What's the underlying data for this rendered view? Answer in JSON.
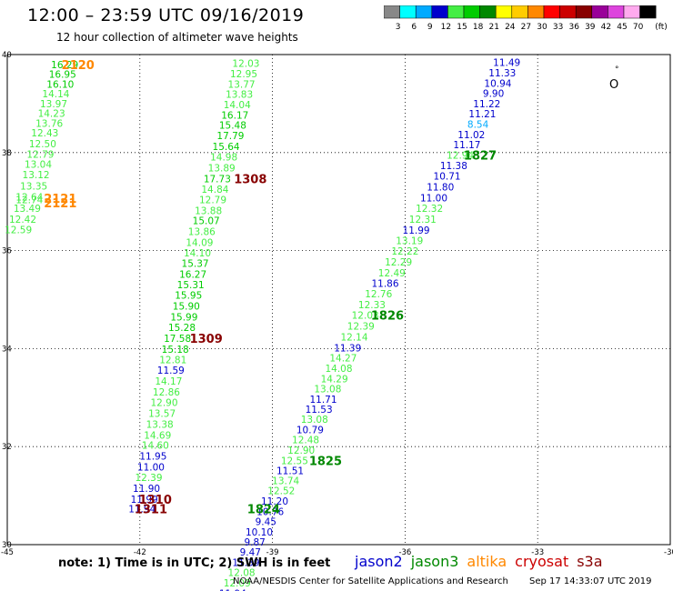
{
  "header": {
    "title": "12:00 – 23:59 UTC 09/16/2019",
    "subtitle": "12 hour collection of altimeter wave heights"
  },
  "colorbar": {
    "unit": "(ft)",
    "bins": [
      {
        "label": "3",
        "color": "#888888"
      },
      {
        "label": "6",
        "color": "#00ffff"
      },
      {
        "label": "9",
        "color": "#00aaff"
      },
      {
        "label": "12",
        "color": "#0000cc"
      },
      {
        "label": "15",
        "color": "#44ee44"
      },
      {
        "label": "18",
        "color": "#00cc00"
      },
      {
        "label": "21",
        "color": "#008800"
      },
      {
        "label": "24",
        "color": "#ffff00"
      },
      {
        "label": "27",
        "color": "#ffcc00"
      },
      {
        "label": "30",
        "color": "#ff8800"
      },
      {
        "label": "33",
        "color": "#ff0000"
      },
      {
        "label": "36",
        "color": "#cc0000"
      },
      {
        "label": "39",
        "color": "#880000"
      },
      {
        "label": "42",
        "color": "#990099"
      },
      {
        "label": "45",
        "color": "#dd44dd"
      },
      {
        "label": "70",
        "color": "#ffaaee"
      },
      {
        "label": "",
        "color": "#000000"
      }
    ]
  },
  "map": {
    "lon_range": [
      -45,
      -30
    ],
    "lat_range": [
      30,
      40
    ],
    "lon_ticks": [
      "-45",
      "-42",
      "-39",
      "-36",
      "-33",
      "-30"
    ],
    "lat_ticks": [
      "40",
      "38",
      "36",
      "34",
      "32",
      "30"
    ],
    "grid_lons": [
      -42,
      -39,
      -36,
      -33
    ],
    "grid_lats": [
      38,
      36,
      34,
      32
    ],
    "island_marks": [
      "°",
      "O"
    ]
  },
  "tracks": [
    {
      "sat": "jason3",
      "values": [
        {
          "v": "16.29",
          "c": "#00cc00",
          "lon": -43.7,
          "lat": 39.8
        },
        {
          "v": "16.95",
          "c": "#00cc00",
          "lon": -43.75,
          "lat": 39.6
        },
        {
          "v": "16.10",
          "c": "#00cc00",
          "lon": -43.8,
          "lat": 39.4
        },
        {
          "v": "14.14",
          "c": "#44ee44",
          "lon": -43.9,
          "lat": 39.2
        },
        {
          "v": "13.97",
          "c": "#44ee44",
          "lon": -43.95,
          "lat": 39.0
        },
        {
          "v": "14.23",
          "c": "#44ee44",
          "lon": -44.0,
          "lat": 38.8
        },
        {
          "v": "13.76",
          "c": "#44ee44",
          "lon": -44.05,
          "lat": 38.6
        },
        {
          "v": "12.43",
          "c": "#44ee44",
          "lon": -44.15,
          "lat": 38.4
        },
        {
          "v": "12.50",
          "c": "#44ee44",
          "lon": -44.2,
          "lat": 38.18
        },
        {
          "v": "12.79",
          "c": "#44ee44",
          "lon": -44.25,
          "lat": 37.97
        },
        {
          "v": "13.04",
          "c": "#44ee44",
          "lon": -44.3,
          "lat": 37.76
        },
        {
          "v": "13.12",
          "c": "#44ee44",
          "lon": -44.35,
          "lat": 37.55
        },
        {
          "v": "13.35",
          "c": "#44ee44",
          "lon": -44.4,
          "lat": 37.32
        },
        {
          "v": "12.64",
          "c": "#44ee44",
          "lon": -44.5,
          "lat": 37.1
        },
        {
          "v": "12.74",
          "c": "#44ee44",
          "lon": -44.5,
          "lat": 37.04
        },
        {
          "v": "13.49",
          "c": "#44ee44",
          "lon": -44.55,
          "lat": 36.86
        },
        {
          "v": "12.42",
          "c": "#44ee44",
          "lon": -44.65,
          "lat": 36.64
        },
        {
          "v": "12.59",
          "c": "#44ee44",
          "lon": -44.75,
          "lat": 36.43
        }
      ]
    },
    {
      "sat": "jason3",
      "values": [
        {
          "v": "12.03",
          "c": "#44ee44",
          "lon": -39.6,
          "lat": 39.82
        },
        {
          "v": "12.95",
          "c": "#44ee44",
          "lon": -39.65,
          "lat": 39.61
        },
        {
          "v": "13.77",
          "c": "#44ee44",
          "lon": -39.7,
          "lat": 39.4
        },
        {
          "v": "13.83",
          "c": "#44ee44",
          "lon": -39.75,
          "lat": 39.19
        },
        {
          "v": "14.04",
          "c": "#44ee44",
          "lon": -39.8,
          "lat": 38.98
        },
        {
          "v": "16.17",
          "c": "#00cc00",
          "lon": -39.85,
          "lat": 38.77
        },
        {
          "v": "15.48",
          "c": "#00cc00",
          "lon": -39.9,
          "lat": 38.56
        },
        {
          "v": "17.79",
          "c": "#00cc00",
          "lon": -39.95,
          "lat": 38.35
        },
        {
          "v": "15.64",
          "c": "#00cc00",
          "lon": -40.05,
          "lat": 38.13
        },
        {
          "v": "14.98",
          "c": "#44ee44",
          "lon": -40.1,
          "lat": 37.91
        },
        {
          "v": "13.89",
          "c": "#44ee44",
          "lon": -40.15,
          "lat": 37.69
        },
        {
          "v": "17.73",
          "c": "#00cc00",
          "lon": -40.25,
          "lat": 37.47
        },
        {
          "v": "14.84",
          "c": "#44ee44",
          "lon": -40.3,
          "lat": 37.25
        },
        {
          "v": "12.79",
          "c": "#44ee44",
          "lon": -40.35,
          "lat": 37.04
        },
        {
          "v": "13.88",
          "c": "#44ee44",
          "lon": -40.45,
          "lat": 36.82
        },
        {
          "v": "15.07",
          "c": "#00cc00",
          "lon": -40.5,
          "lat": 36.61
        },
        {
          "v": "13.86",
          "c": "#44ee44",
          "lon": -40.6,
          "lat": 36.39
        },
        {
          "v": "14.09",
          "c": "#44ee44",
          "lon": -40.65,
          "lat": 36.17
        },
        {
          "v": "14.10",
          "c": "#44ee44",
          "lon": -40.7,
          "lat": 35.96
        },
        {
          "v": "15.37",
          "c": "#00cc00",
          "lon": -40.75,
          "lat": 35.74
        },
        {
          "v": "16.27",
          "c": "#00cc00",
          "lon": -40.8,
          "lat": 35.52
        },
        {
          "v": "15.31",
          "c": "#00cc00",
          "lon": -40.85,
          "lat": 35.31
        },
        {
          "v": "15.95",
          "c": "#00cc00",
          "lon": -40.9,
          "lat": 35.09
        },
        {
          "v": "15.90",
          "c": "#00cc00",
          "lon": -40.95,
          "lat": 34.87
        },
        {
          "v": "15.99",
          "c": "#00cc00",
          "lon": -41.0,
          "lat": 34.65
        },
        {
          "v": "15.28",
          "c": "#00cc00",
          "lon": -41.05,
          "lat": 34.43
        },
        {
          "v": "17.58",
          "c": "#00cc00",
          "lon": -41.15,
          "lat": 34.21
        },
        {
          "v": "15.18",
          "c": "#00cc00",
          "lon": -41.2,
          "lat": 33.99
        },
        {
          "v": "12.81",
          "c": "#44ee44",
          "lon": -41.25,
          "lat": 33.78
        },
        {
          "v": "11.59",
          "c": "#0000cc",
          "lon": -41.3,
          "lat": 33.56
        },
        {
          "v": "14.17",
          "c": "#44ee44",
          "lon": -41.35,
          "lat": 33.34
        },
        {
          "v": "12.86",
          "c": "#44ee44",
          "lon": -41.4,
          "lat": 33.12
        },
        {
          "v": "12.90",
          "c": "#44ee44",
          "lon": -41.45,
          "lat": 32.9
        },
        {
          "v": "13.57",
          "c": "#44ee44",
          "lon": -41.5,
          "lat": 32.68
        },
        {
          "v": "13.38",
          "c": "#44ee44",
          "lon": -41.55,
          "lat": 32.46
        },
        {
          "v": "14.69",
          "c": "#44ee44",
          "lon": -41.6,
          "lat": 32.24
        },
        {
          "v": "14.60",
          "c": "#44ee44",
          "lon": -41.65,
          "lat": 32.03
        },
        {
          "v": "11.95",
          "c": "#0000cc",
          "lon": -41.7,
          "lat": 31.81
        },
        {
          "v": "11.00",
          "c": "#0000cc",
          "lon": -41.75,
          "lat": 31.59
        },
        {
          "v": "12.39",
          "c": "#44ee44",
          "lon": -41.8,
          "lat": 31.37
        },
        {
          "v": "11.90",
          "c": "#0000cc",
          "lon": -41.85,
          "lat": 31.15
        },
        {
          "v": "11.99",
          "c": "#0000cc",
          "lon": -41.9,
          "lat": 30.93
        },
        {
          "v": "11.94",
          "c": "#0000cc",
          "lon": -41.95,
          "lat": 30.73
        }
      ]
    },
    {
      "sat": "jason2-jason3",
      "values": [
        {
          "v": "11.49",
          "c": "#0000cc",
          "lon": -33.7,
          "lat": 39.84
        },
        {
          "v": "11.33",
          "c": "#0000cc",
          "lon": -33.8,
          "lat": 39.63
        },
        {
          "v": "10.94",
          "c": "#0000cc",
          "lon": -33.9,
          "lat": 39.42
        },
        {
          "v": "9.90",
          "c": "#0000cc",
          "lon": -34.0,
          "lat": 39.21
        },
        {
          "v": "11.22",
          "c": "#0000cc",
          "lon": -34.15,
          "lat": 39.0
        },
        {
          "v": "11.21",
          "c": "#0000cc",
          "lon": -34.25,
          "lat": 38.79
        },
        {
          "v": "8.54",
          "c": "#00aaff",
          "lon": -34.35,
          "lat": 38.58
        },
        {
          "v": "11.02",
          "c": "#0000cc",
          "lon": -34.5,
          "lat": 38.37
        },
        {
          "v": "11.17",
          "c": "#0000cc",
          "lon": -34.6,
          "lat": 38.16
        },
        {
          "v": "12.94",
          "c": "#44ee44",
          "lon": -34.75,
          "lat": 37.95
        },
        {
          "v": "11.38",
          "c": "#0000cc",
          "lon": -34.9,
          "lat": 37.74
        },
        {
          "v": "10.71",
          "c": "#0000cc",
          "lon": -35.05,
          "lat": 37.52
        },
        {
          "v": "11.80",
          "c": "#0000cc",
          "lon": -35.2,
          "lat": 37.3
        },
        {
          "v": "11.00",
          "c": "#0000cc",
          "lon": -35.35,
          "lat": 37.08
        },
        {
          "v": "12.32",
          "c": "#44ee44",
          "lon": -35.45,
          "lat": 36.86
        },
        {
          "v": "12.31",
          "c": "#44ee44",
          "lon": -35.6,
          "lat": 36.64
        },
        {
          "v": "11.99",
          "c": "#0000cc",
          "lon": -35.75,
          "lat": 36.42
        },
        {
          "v": "13.19",
          "c": "#44ee44",
          "lon": -35.9,
          "lat": 36.21
        },
        {
          "v": "12.22",
          "c": "#44ee44",
          "lon": -36.0,
          "lat": 35.99
        },
        {
          "v": "12.29",
          "c": "#44ee44",
          "lon": -36.15,
          "lat": 35.77
        },
        {
          "v": "12.49",
          "c": "#44ee44",
          "lon": -36.3,
          "lat": 35.55
        },
        {
          "v": "11.86",
          "c": "#0000cc",
          "lon": -36.45,
          "lat": 35.33
        },
        {
          "v": "12.76",
          "c": "#44ee44",
          "lon": -36.6,
          "lat": 35.12
        },
        {
          "v": "12.33",
          "c": "#44ee44",
          "lon": -36.75,
          "lat": 34.9
        },
        {
          "v": "12.03",
          "c": "#44ee44",
          "lon": -36.9,
          "lat": 34.68
        },
        {
          "v": "12.39",
          "c": "#44ee44",
          "lon": -37.0,
          "lat": 34.46
        },
        {
          "v": "12.14",
          "c": "#44ee44",
          "lon": -37.15,
          "lat": 34.24
        },
        {
          "v": "11.39",
          "c": "#0000cc",
          "lon": -37.3,
          "lat": 34.02
        },
        {
          "v": "14.27",
          "c": "#44ee44",
          "lon": -37.4,
          "lat": 33.81
        },
        {
          "v": "14.08",
          "c": "#44ee44",
          "lon": -37.5,
          "lat": 33.6
        },
        {
          "v": "14.29",
          "c": "#44ee44",
          "lon": -37.6,
          "lat": 33.39
        },
        {
          "v": "13.08",
          "c": "#44ee44",
          "lon": -37.75,
          "lat": 33.18
        },
        {
          "v": "11.71",
          "c": "#0000cc",
          "lon": -37.85,
          "lat": 32.97
        },
        {
          "v": "11.53",
          "c": "#0000cc",
          "lon": -37.95,
          "lat": 32.76
        },
        {
          "v": "13.08",
          "c": "#44ee44",
          "lon": -38.05,
          "lat": 32.56
        },
        {
          "v": "10.79",
          "c": "#0000cc",
          "lon": -38.15,
          "lat": 32.35
        },
        {
          "v": "12.48",
          "c": "#44ee44",
          "lon": -38.25,
          "lat": 32.14
        },
        {
          "v": "12.90",
          "c": "#44ee44",
          "lon": -38.35,
          "lat": 31.93
        },
        {
          "v": "12.55",
          "c": "#44ee44",
          "lon": -38.5,
          "lat": 31.72
        },
        {
          "v": "11.51",
          "c": "#0000cc",
          "lon": -38.6,
          "lat": 31.51
        },
        {
          "v": "13.74",
          "c": "#44ee44",
          "lon": -38.7,
          "lat": 31.31
        },
        {
          "v": "12.52",
          "c": "#44ee44",
          "lon": -38.8,
          "lat": 31.1
        },
        {
          "v": "11.20",
          "c": "#0000cc",
          "lon": -38.95,
          "lat": 30.89
        },
        {
          "v": "10.76",
          "c": "#0000cc",
          "lon": -39.05,
          "lat": 30.68
        },
        {
          "v": "9.45",
          "c": "#0000cc",
          "lon": -39.15,
          "lat": 30.47
        },
        {
          "v": "10.10",
          "c": "#0000cc",
          "lon": -39.3,
          "lat": 30.26
        },
        {
          "v": "9.87",
          "c": "#0000cc",
          "lon": -39.4,
          "lat": 30.06
        },
        {
          "v": "9.47",
          "c": "#0000cc",
          "lon": -39.5,
          "lat": 29.85
        },
        {
          "v": "11.39",
          "c": "#0000cc",
          "lon": -39.6,
          "lat": 29.64
        },
        {
          "v": "12.08",
          "c": "#44ee44",
          "lon": -39.7,
          "lat": 29.43
        },
        {
          "v": "12.09",
          "c": "#44ee44",
          "lon": -39.8,
          "lat": 29.22
        },
        {
          "v": "11.94",
          "c": "#0000cc",
          "lon": -39.9,
          "lat": 29.01
        },
        {
          "v": "12.04",
          "c": "#44ee44",
          "lon": -40.0,
          "lat": 28.8
        }
      ]
    }
  ],
  "pass_labels": [
    {
      "text": "2120",
      "c": "#ff8800",
      "lon": -43.4,
      "lat": 39.8
    },
    {
      "text": "2121",
      "c": "#ff8800",
      "lon": -43.8,
      "lat": 37.07
    },
    {
      "text": "2121",
      "c": "#ff8800",
      "lon": -43.8,
      "lat": 36.98
    },
    {
      "text": "1308",
      "c": "#880000",
      "lon": -39.5,
      "lat": 37.47
    },
    {
      "text": "1827",
      "c": "#008800",
      "lon": -34.3,
      "lat": 37.95
    },
    {
      "text": "1826",
      "c": "#008800",
      "lon": -36.4,
      "lat": 34.68
    },
    {
      "text": "1309",
      "c": "#880000",
      "lon": -40.5,
      "lat": 34.21
    },
    {
      "text": "1825",
      "c": "#008800",
      "lon": -37.8,
      "lat": 31.72
    },
    {
      "text": "1310",
      "c": "#880000",
      "lon": -41.65,
      "lat": 30.93
    },
    {
      "text": "1311",
      "c": "#880000",
      "lon": -41.75,
      "lat": 30.73
    },
    {
      "text": "1824",
      "c": "#008800",
      "lon": -39.2,
      "lat": 30.73
    }
  ],
  "footer": {
    "note": "note:  1) Time is in UTC;  2) SWH is in feet",
    "satellites": [
      {
        "name": "jason2",
        "color": "#0000cc"
      },
      {
        "name": "jason3",
        "color": "#008800"
      },
      {
        "name": "altika",
        "color": "#ff8800"
      },
      {
        "name": "cryosat",
        "color": "#cc0000"
      },
      {
        "name": "s3a",
        "color": "#880000"
      }
    ],
    "credit": "NOAA/NESDIS Center for Satellite Applications and Research",
    "timestamp": "Sep 17 14:33:07 UTC 2019"
  }
}
